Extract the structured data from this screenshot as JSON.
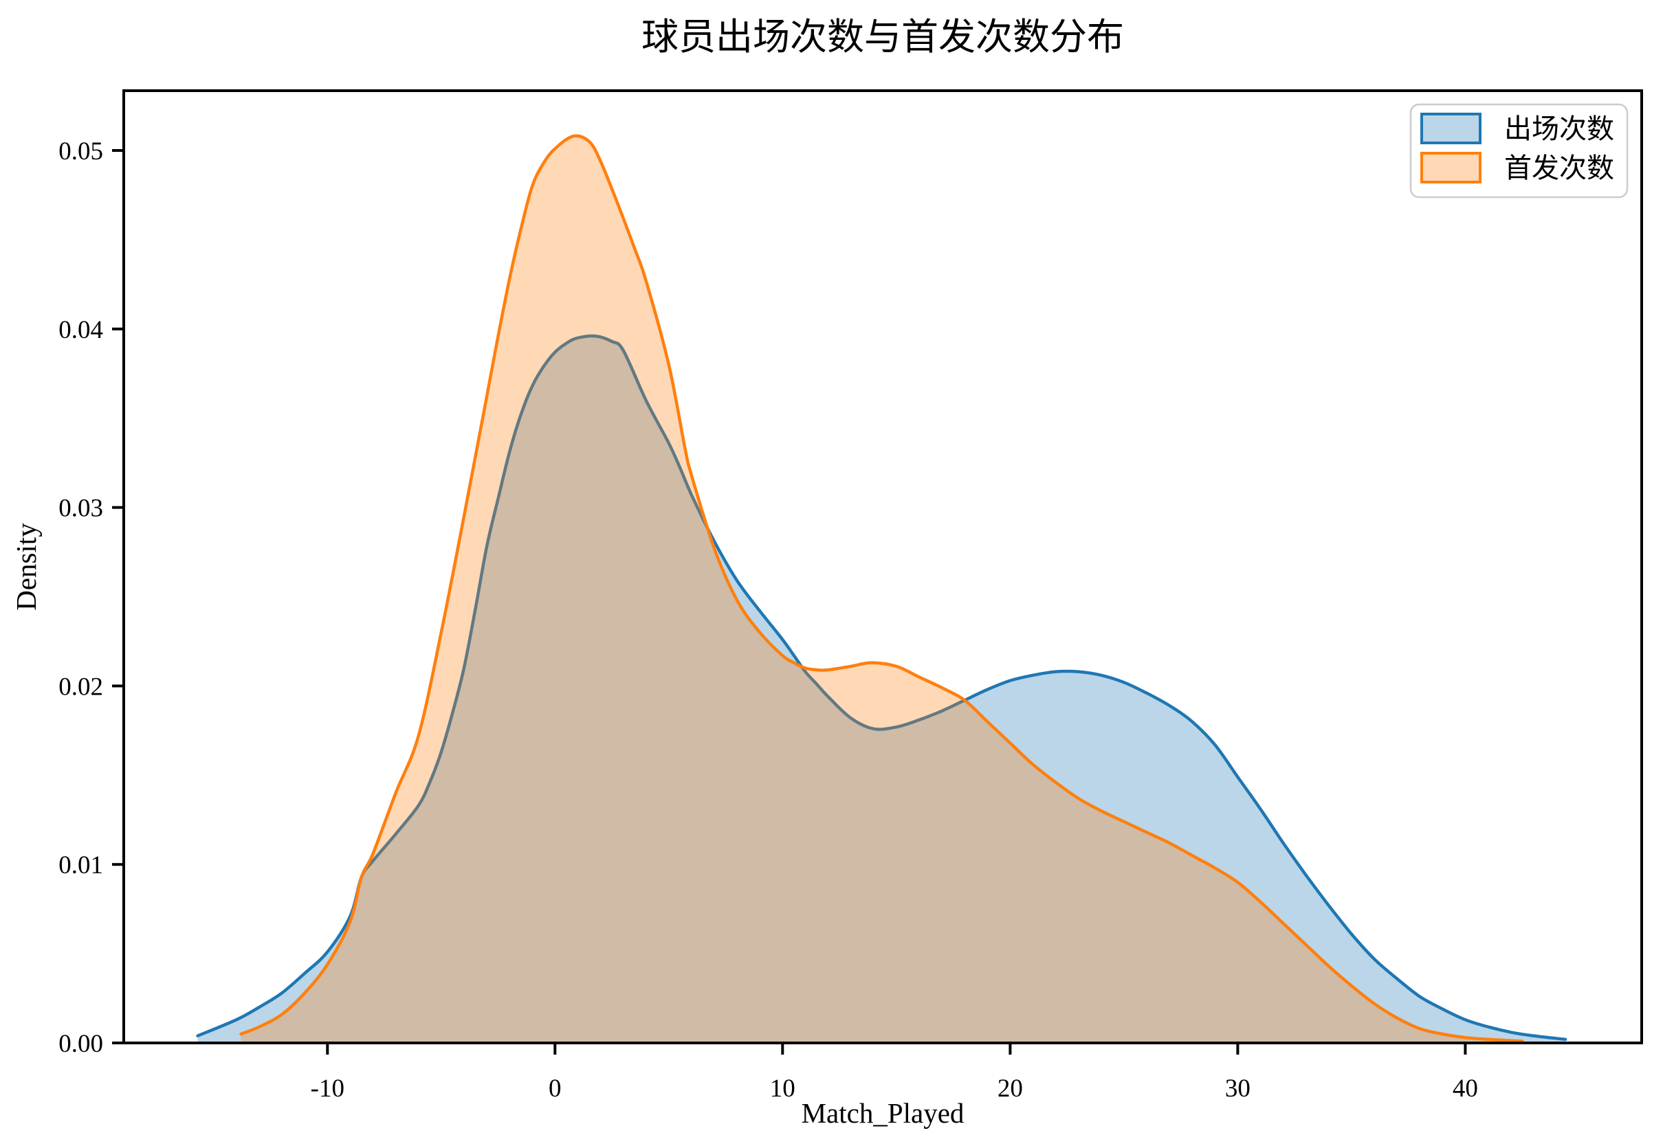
{
  "figure": {
    "title": "球员出场次数与首发次数分布",
    "x_axis": {
      "label": "Match_Played",
      "tick_labels": [
        "-10",
        "0",
        "10",
        "20",
        "30",
        "40"
      ]
    },
    "y_axis": {
      "label": "Density",
      "tick_labels": [
        "0.00",
        "0.01",
        "0.02",
        "0.03",
        "0.04",
        "0.05"
      ]
    },
    "legend": {
      "position": "upper right",
      "items": [
        {
          "label": "出场次数",
          "color": "#1f77b4"
        },
        {
          "label": "首发次数",
          "color": "#ff7f0e"
        }
      ]
    }
  },
  "chart_data": {
    "type": "area",
    "subtype": "kde-density",
    "title": "球员出场次数与首发次数分布",
    "xlabel": "Match_Played",
    "ylabel": "Density",
    "xlim": [
      -18.95,
      47.75
    ],
    "ylim": [
      0,
      0.05335
    ],
    "x_ticks": [
      -10,
      0,
      10,
      20,
      30,
      40
    ],
    "y_ticks": [
      0,
      0.01,
      0.02,
      0.03,
      0.04,
      0.05
    ],
    "grid": false,
    "legend_position": "upper right",
    "fill_opacity": 0.3,
    "series": [
      {
        "name": "出场次数",
        "color": "#1f77b4",
        "x": [
          -15.7,
          -14,
          -13,
          -12,
          -11,
          -10,
          -9,
          -8.5,
          -8,
          -7,
          -6,
          -5.5,
          -5,
          -4.5,
          -4,
          -3.5,
          -3,
          -2.5,
          -2,
          -1.5,
          -1,
          -0.5,
          0,
          0.5,
          1,
          1.8,
          2.5,
          3,
          4,
          5,
          5.5,
          6,
          7,
          8,
          9,
          10,
          10.5,
          11,
          11.5,
          12,
          13,
          14,
          15,
          16,
          17,
          18,
          19,
          20,
          21,
          22,
          23,
          24,
          25,
          26,
          27,
          28,
          29,
          30,
          31,
          32,
          33,
          34,
          35,
          36,
          37,
          38,
          39,
          40,
          41,
          42,
          43,
          44.4
        ],
        "y": [
          0.0004,
          0.0013,
          0.002,
          0.0028,
          0.0039,
          0.0051,
          0.0071,
          0.0093,
          0.0102,
          0.0117,
          0.0133,
          0.0146,
          0.0163,
          0.0185,
          0.021,
          0.0243,
          0.0278,
          0.0305,
          0.0331,
          0.0352,
          0.0368,
          0.0379,
          0.0387,
          0.0392,
          0.0395,
          0.0396,
          0.0393,
          0.0388,
          0.036,
          0.0336,
          0.0322,
          0.0307,
          0.0281,
          0.0259,
          0.0242,
          0.0226,
          0.0217,
          0.0208,
          0.0201,
          0.0194,
          0.0182,
          0.0176,
          0.0177,
          0.0181,
          0.0186,
          0.0192,
          0.0198,
          0.0203,
          0.0206,
          0.0208,
          0.0208,
          0.0206,
          0.0202,
          0.0196,
          0.0189,
          0.018,
          0.0167,
          0.0149,
          0.0131,
          0.0112,
          0.0094,
          0.0077,
          0.0061,
          0.0047,
          0.0036,
          0.0026,
          0.0019,
          0.0013,
          0.0009,
          0.0006,
          0.0004,
          0.0002
        ]
      },
      {
        "name": "首发次数",
        "color": "#ff7f0e",
        "x": [
          -13.8,
          -13,
          -12,
          -11,
          -10,
          -9,
          -8.5,
          -8,
          -7,
          -6,
          -5,
          -4,
          -3,
          -2.5,
          -2,
          -1.5,
          -1,
          -0.5,
          0,
          0.8,
          1.5,
          2,
          2.7,
          3.5,
          4,
          5,
          5.7,
          6,
          7,
          8,
          9,
          10,
          10.5,
          11,
          11.5,
          12,
          13,
          13.9,
          15,
          16,
          17,
          18,
          19,
          20,
          21,
          22,
          23,
          24,
          25,
          26,
          27,
          28,
          29,
          30,
          31,
          32,
          33,
          34,
          35,
          36,
          37,
          38,
          39,
          40,
          41,
          42.5
        ],
        "y": [
          0.0005,
          0.0009,
          0.0016,
          0.0028,
          0.0044,
          0.0068,
          0.0093,
          0.0106,
          0.014,
          0.0172,
          0.023,
          0.0295,
          0.0362,
          0.0396,
          0.0428,
          0.0456,
          0.048,
          0.0493,
          0.0501,
          0.0508,
          0.0505,
          0.0494,
          0.0472,
          0.0445,
          0.0427,
          0.038,
          0.0334,
          0.0318,
          0.0277,
          0.0248,
          0.023,
          0.0217,
          0.0213,
          0.021,
          0.0209,
          0.0209,
          0.0211,
          0.0213,
          0.0211,
          0.0205,
          0.0199,
          0.0192,
          0.018,
          0.0168,
          0.0156,
          0.0146,
          0.0137,
          0.013,
          0.0124,
          0.0118,
          0.0112,
          0.0105,
          0.0098,
          0.009,
          0.0079,
          0.0067,
          0.0055,
          0.0043,
          0.0032,
          0.0022,
          0.0014,
          0.0008,
          0.0005,
          0.0003,
          0.0002,
          0.0001
        ]
      }
    ]
  }
}
